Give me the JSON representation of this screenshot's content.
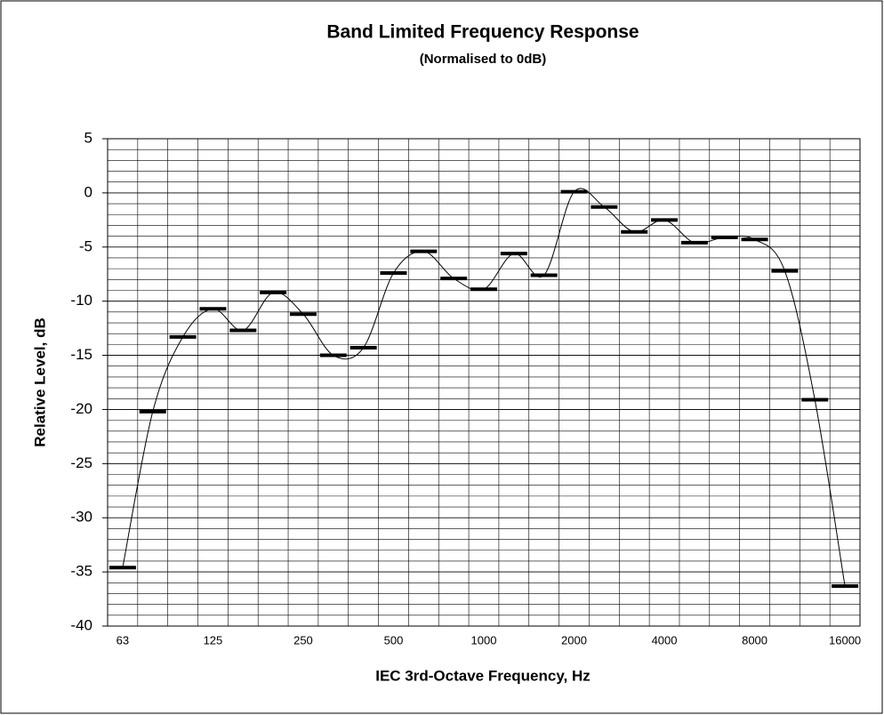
{
  "chart_data": {
    "type": "line",
    "title": "Band Limited Frequency Response",
    "subtitle": "(Normalised to 0dB)",
    "x_label": "IEC 3rd-Octave Frequency, Hz",
    "y_label": "Relative Level, dB",
    "categories": [
      "63",
      null,
      null,
      "125",
      null,
      null,
      "250",
      null,
      null,
      "500",
      null,
      null,
      "1000",
      null,
      null,
      "2000",
      null,
      null,
      "4000",
      null,
      null,
      "8000",
      null,
      null,
      "16000"
    ],
    "series": [
      {
        "color": "#000000",
        "values": [
          -34.6,
          -20.2,
          -13.3,
          -10.7,
          -12.7,
          -9.2,
          -11.2,
          -15.0,
          -14.3,
          -7.4,
          -5.4,
          -7.9,
          -8.9,
          -5.6,
          -7.6,
          0.1,
          -1.3,
          -3.6,
          -2.5,
          -4.6,
          -4.1,
          -4.3,
          -7.2,
          -19.1,
          -36.3
        ]
      }
    ],
    "ylim": [
      -40,
      5
    ],
    "yticks": [
      -40,
      -35,
      -30,
      -25,
      -20,
      -15,
      -10,
      -5,
      0,
      5
    ],
    "grid": true,
    "minor_grid_step": 1
  }
}
